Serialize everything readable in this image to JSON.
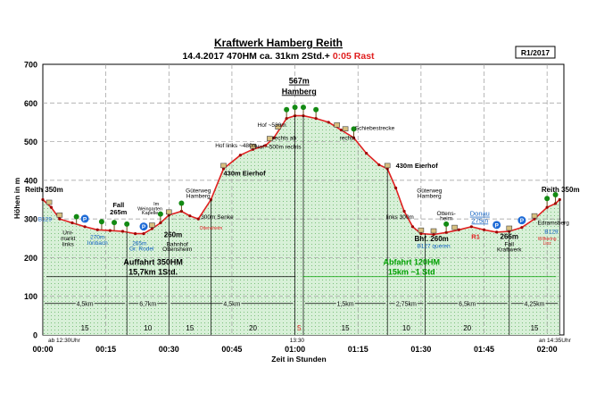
{
  "chart_data": {
    "type": "area",
    "title": "Kraftwerk Hamberg Reith",
    "subtitle_left": "14.4.2017   470HM   ca. 31km   2Std.+",
    "subtitle_rast": "0:05 Rast",
    "route_id": "R1/2017",
    "xlabel": "Zeit in Stunden",
    "ylabel": "Höhen in m",
    "ylim": [
      0,
      700
    ],
    "y_ticks": [
      "0",
      "100",
      "200",
      "300",
      "400",
      "500",
      "600",
      "700"
    ],
    "x_ticks": [
      {
        "t": 0,
        "label": "00:00"
      },
      {
        "t": 15,
        "label": "00:15"
      },
      {
        "t": 30,
        "label": "00:30"
      },
      {
        "t": 45,
        "label": "00:45"
      },
      {
        "t": 60,
        "label": "01:00"
      },
      {
        "t": 75,
        "label": "01:15"
      },
      {
        "t": 90,
        "label": "01:30"
      },
      {
        "t": 105,
        "label": "01:45"
      },
      {
        "t": 120,
        "label": "02:00"
      }
    ],
    "grid": true,
    "colors": {
      "line": "#e02020",
      "fill": "#d8f0d8",
      "grid": "#9a9a9a",
      "blue": "#1060c0",
      "red": "#e02020",
      "green": "#00a000"
    },
    "profile": [
      {
        "t": 0,
        "h": 350
      },
      {
        "t": 2,
        "h": 330
      },
      {
        "t": 4,
        "h": 300
      },
      {
        "t": 7,
        "h": 290
      },
      {
        "t": 10,
        "h": 280
      },
      {
        "t": 13,
        "h": 272
      },
      {
        "t": 16,
        "h": 270
      },
      {
        "t": 19,
        "h": 268
      },
      {
        "t": 22,
        "h": 262
      },
      {
        "t": 24,
        "h": 262
      },
      {
        "t": 26,
        "h": 275
      },
      {
        "t": 28,
        "h": 290
      },
      {
        "t": 30,
        "h": 310
      },
      {
        "t": 33,
        "h": 320
      },
      {
        "t": 35,
        "h": 308
      },
      {
        "t": 37,
        "h": 300
      },
      {
        "t": 40,
        "h": 350
      },
      {
        "t": 43,
        "h": 430
      },
      {
        "t": 47,
        "h": 465
      },
      {
        "t": 50,
        "h": 480
      },
      {
        "t": 53,
        "h": 490
      },
      {
        "t": 55,
        "h": 510
      },
      {
        "t": 58,
        "h": 560
      },
      {
        "t": 60,
        "h": 567
      },
      {
        "t": 62,
        "h": 567
      },
      {
        "t": 65,
        "h": 560
      },
      {
        "t": 68,
        "h": 550
      },
      {
        "t": 71,
        "h": 530
      },
      {
        "t": 74,
        "h": 510
      },
      {
        "t": 77,
        "h": 470
      },
      {
        "t": 80,
        "h": 440
      },
      {
        "t": 82,
        "h": 430
      },
      {
        "t": 84,
        "h": 380
      },
      {
        "t": 86,
        "h": 320
      },
      {
        "t": 88,
        "h": 280
      },
      {
        "t": 90,
        "h": 262
      },
      {
        "t": 93,
        "h": 260
      },
      {
        "t": 96,
        "h": 265
      },
      {
        "t": 99,
        "h": 272
      },
      {
        "t": 102,
        "h": 280
      },
      {
        "t": 105,
        "h": 272
      },
      {
        "t": 108,
        "h": 266
      },
      {
        "t": 111,
        "h": 268
      },
      {
        "t": 114,
        "h": 278
      },
      {
        "t": 117,
        "h": 300
      },
      {
        "t": 120,
        "h": 330
      },
      {
        "t": 122,
        "h": 340
      },
      {
        "t": 123,
        "h": 350
      }
    ],
    "distance_bands": [
      {
        "t0": 0,
        "t1": 20,
        "label": "4,5km"
      },
      {
        "t0": 20,
        "t1": 30,
        "label": "6,7km"
      },
      {
        "t0": 30,
        "t1": 60,
        "label": "4,5km"
      },
      {
        "t0": 62,
        "t1": 82,
        "label": "1,5km"
      },
      {
        "t0": 82,
        "t1": 91,
        "label": "2,75km"
      },
      {
        "t0": 91,
        "t1": 111,
        "label": "6,5km"
      },
      {
        "t0": 111,
        "t1": 123,
        "label": "4,25km"
      }
    ],
    "duration_bands": [
      {
        "t0": 0,
        "t1": 20,
        "label": "15"
      },
      {
        "t0": 20,
        "t1": 30,
        "label": "10"
      },
      {
        "t0": 30,
        "t1": 40,
        "label": "15"
      },
      {
        "t0": 40,
        "t1": 60,
        "label": "20"
      },
      {
        "t0": 60,
        "t1": 62,
        "label": "5"
      },
      {
        "t0": 62,
        "t1": 82,
        "label": "15"
      },
      {
        "t0": 82,
        "t1": 91,
        "label": "10"
      },
      {
        "t0": 91,
        "t1": 111,
        "label": "20"
      },
      {
        "t0": 111,
        "t1": 123,
        "label": "15"
      }
    ],
    "start_time": "ab 12:30Uhr",
    "end_time": "an 14:35Uhr",
    "peak_time": "13:30",
    "sections": [
      {
        "line1": "Auffahrt  350HM",
        "line2": "15,7km  1Std.",
        "t0": 0,
        "t1": 61,
        "color": "#000000"
      },
      {
        "line1": "Abfahrt 120HM",
        "line2": "15km  ~1 Std",
        "t0": 61,
        "t1": 123,
        "color": "#00a000"
      }
    ],
    "annotations": [
      {
        "text": "Reith 350m",
        "t": 0.3,
        "h": 370,
        "color": "#000000",
        "size": 8,
        "weight": "bold"
      },
      {
        "text": "B129",
        "t": 0.5,
        "h": 295,
        "color": "#1060c0",
        "size": 6.5
      },
      {
        "text": "Uni-",
        "t": 6,
        "h": 260,
        "color": "#000000",
        "size": 6.5
      },
      {
        "text": "markt",
        "t": 6,
        "h": 245,
        "color": "#000000",
        "size": 6.5
      },
      {
        "text": "links",
        "t": 6,
        "h": 230,
        "color": "#000000",
        "size": 6.5
      },
      {
        "text": "270m",
        "t": 13,
        "h": 248,
        "color": "#1060c0",
        "size": 6.5
      },
      {
        "text": "Innbach",
        "t": 13,
        "h": 233,
        "color": "#1060c0",
        "size": 6.5
      },
      {
        "text": "Fall",
        "t": 18,
        "h": 330,
        "color": "#000000",
        "size": 7.5,
        "weight": "bold"
      },
      {
        "text": "265m",
        "t": 18,
        "h": 312,
        "color": "#000000",
        "size": 7.5,
        "weight": "bold"
      },
      {
        "text": "Im",
        "t": 27,
        "h": 335,
        "color": "#000000",
        "size": 5.5
      },
      {
        "text": "Weingarten",
        "t": 25.5,
        "h": 322,
        "color": "#000000",
        "size": 5.5
      },
      {
        "text": "Kapelle",
        "t": 25.5,
        "h": 312,
        "color": "#000000",
        "size": 5.5
      },
      {
        "text": "265m",
        "t": 23,
        "h": 232,
        "color": "#1060c0",
        "size": 6.5
      },
      {
        "text": "Gr. Rodel",
        "t": 23.5,
        "h": 218,
        "color": "#1060c0",
        "size": 6.5
      },
      {
        "text": "260m",
        "t": 31,
        "h": 253,
        "color": "#000000",
        "size": 8,
        "weight": "bold"
      },
      {
        "text": "Bahnhof",
        "t": 32,
        "h": 230,
        "color": "#000000",
        "size": 6.5
      },
      {
        "text": "Ottensheim",
        "t": 32,
        "h": 217,
        "color": "#000000",
        "size": 6.5
      },
      {
        "text": "Güterweg",
        "t": 37,
        "h": 368,
        "color": "#000000",
        "size": 6.5
      },
      {
        "text": "Hamberg",
        "t": 37,
        "h": 355,
        "color": "#000000",
        "size": 6.5
      },
      {
        "text": "300m Senke",
        "t": 41.5,
        "h": 300,
        "color": "#000000",
        "size": 6.5
      },
      {
        "text": "Ottensheim",
        "t": 40,
        "h": 273,
        "color": "#e02020",
        "size": 5
      },
      {
        "text": "430m Eierhof",
        "t": 48,
        "h": 412,
        "color": "#000000",
        "size": 7.5,
        "weight": "bold"
      },
      {
        "text": "Hof links ~480m",
        "t": 46,
        "h": 485,
        "color": "#000000",
        "size": 6.5
      },
      {
        "text": "Hof ~530m",
        "t": 54.5,
        "h": 538,
        "color": "#000000",
        "size": 6.5
      },
      {
        "text": "rechts ab",
        "t": 57.5,
        "h": 505,
        "color": "#000000",
        "size": 6.5
      },
      {
        "text": "Hof ~500m rechts",
        "t": 56,
        "h": 482,
        "color": "#000000",
        "size": 6.5
      },
      {
        "text": "567m",
        "t": 61,
        "h": 650,
        "color": "#000000",
        "size": 9,
        "weight": "bold",
        "underline": true
      },
      {
        "text": "Hamberg",
        "t": 61,
        "h": 623,
        "color": "#000000",
        "size": 9,
        "weight": "bold",
        "underline": true
      },
      {
        "text": "Schiebestrecke",
        "t": 79,
        "h": 530,
        "color": "#000000",
        "size": 6.5
      },
      {
        "text": "rechts",
        "t": 72.5,
        "h": 505,
        "color": "#000000",
        "size": 6.5
      },
      {
        "text": "430m Eierhof",
        "t": 89,
        "h": 432,
        "color": "#000000",
        "size": 7.5,
        "weight": "bold"
      },
      {
        "text": "Güterweg",
        "t": 92,
        "h": 368,
        "color": "#000000",
        "size": 6.5
      },
      {
        "text": "Hamberg",
        "t": 92,
        "h": 355,
        "color": "#000000",
        "size": 6.5
      },
      {
        "text": "links  300m",
        "t": 85,
        "h": 300,
        "color": "#000000",
        "size": 6.5
      },
      {
        "text": "Ottens-",
        "t": 96,
        "h": 310,
        "color": "#000000",
        "size": 6.5
      },
      {
        "text": "heim",
        "t": 96,
        "h": 297,
        "color": "#000000",
        "size": 6.5
      },
      {
        "text": "Bhf. 260m",
        "t": 92.5,
        "h": 242,
        "color": "#000000",
        "size": 8,
        "weight": "bold"
      },
      {
        "text": "B127 queren",
        "t": 93,
        "h": 225,
        "color": "#1060c0",
        "size": 6.5
      },
      {
        "text": "Donau",
        "t": 104,
        "h": 308,
        "color": "#1060c0",
        "size": 7.5,
        "underline": true
      },
      {
        "text": "275m",
        "t": 104,
        "h": 290,
        "color": "#1060c0",
        "size": 7.5,
        "underline": true
      },
      {
        "text": "R1",
        "t": 103,
        "h": 248,
        "color": "#e02020",
        "size": 7.5,
        "weight": "bold"
      },
      {
        "text": "266m",
        "t": 111,
        "h": 248,
        "color": "#000000",
        "size": 8,
        "weight": "bold"
      },
      {
        "text": "Fall",
        "t": 111,
        "h": 230,
        "color": "#000000",
        "size": 6.5
      },
      {
        "text": "Kraftwerk",
        "t": 111,
        "h": 216,
        "color": "#000000",
        "size": 6.5
      },
      {
        "text": "Edramsberg",
        "t": 121.5,
        "h": 285,
        "color": "#000000",
        "size": 6.5
      },
      {
        "text": "B129",
        "t": 121,
        "h": 262,
        "color": "#1060c0",
        "size": 6.5
      },
      {
        "text": "Wilhering",
        "t": 120,
        "h": 245,
        "color": "#e02020",
        "size": 5
      },
      {
        "text": "Linz",
        "t": 120,
        "h": 233,
        "color": "#e02020",
        "size": 5
      },
      {
        "text": "Reith 350m",
        "t": 123.2,
        "h": 370,
        "color": "#000000",
        "size": 8,
        "weight": "bold"
      }
    ],
    "landmarks": [
      {
        "t": 1.5,
        "h": 335,
        "type": "marker"
      },
      {
        "t": 4,
        "h": 302,
        "type": "marker"
      },
      {
        "t": 8,
        "h": 285,
        "type": "tree"
      },
      {
        "t": 10,
        "h": 282,
        "type": "parking"
      },
      {
        "t": 14,
        "h": 272,
        "type": "tree"
      },
      {
        "t": 17,
        "h": 270,
        "type": "tree"
      },
      {
        "t": 20,
        "h": 266,
        "type": "tree"
      },
      {
        "t": 24,
        "h": 262,
        "type": "parking"
      },
      {
        "t": 26,
        "h": 276,
        "type": "marker"
      },
      {
        "t": 28,
        "h": 292,
        "type": "tree"
      },
      {
        "t": 30,
        "h": 310,
        "type": "marker"
      },
      {
        "t": 33,
        "h": 320,
        "type": "tree"
      },
      {
        "t": 43,
        "h": 430,
        "type": "marker"
      },
      {
        "t": 50,
        "h": 480,
        "type": "marker"
      },
      {
        "t": 54,
        "h": 500,
        "type": "marker"
      },
      {
        "t": 56,
        "h": 530,
        "type": "marker"
      },
      {
        "t": 58,
        "h": 562,
        "type": "tree"
      },
      {
        "t": 60,
        "h": 568,
        "type": "tree"
      },
      {
        "t": 62,
        "h": 568,
        "type": "tree"
      },
      {
        "t": 65,
        "h": 562,
        "type": "tree"
      },
      {
        "t": 70,
        "h": 535,
        "type": "marker"
      },
      {
        "t": 72,
        "h": 525,
        "type": "marker"
      },
      {
        "t": 74,
        "h": 512,
        "type": "tree"
      },
      {
        "t": 82,
        "h": 430,
        "type": "marker"
      },
      {
        "t": 90,
        "h": 263,
        "type": "marker"
      },
      {
        "t": 93,
        "h": 261,
        "type": "marker"
      },
      {
        "t": 96,
        "h": 266,
        "type": "tree"
      },
      {
        "t": 98,
        "h": 270,
        "type": "marker"
      },
      {
        "t": 108,
        "h": 266,
        "type": "parking"
      },
      {
        "t": 111,
        "h": 268,
        "type": "marker"
      },
      {
        "t": 114,
        "h": 278,
        "type": "parking"
      },
      {
        "t": 117,
        "h": 300,
        "type": "marker"
      },
      {
        "t": 120,
        "h": 332,
        "type": "tree"
      },
      {
        "t": 122,
        "h": 342,
        "type": "tree"
      }
    ]
  }
}
